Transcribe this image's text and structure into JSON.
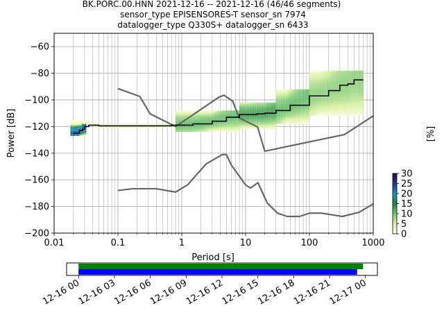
{
  "title_lines": [
    "BK.PORC.00.HNN   2021-12-16 -- 2021-12-16  (46/46 segments)",
    "sensor_type EPISENSORES-T sensor_sn 7974",
    "datalogger_type Q330S+ datalogger_sn 6433"
  ],
  "chart_data": [
    {
      "type": "heatmap",
      "xlabel": "Period [s]",
      "ylabel": "Power [dB]",
      "xscale": "log",
      "xlim": [
        0.01,
        1000
      ],
      "ylim": [
        -200,
        -50
      ],
      "grid": true,
      "x_ticks": [
        {
          "v": 0.01,
          "label": "0.01"
        },
        {
          "v": 0.1,
          "label": "0.1"
        },
        {
          "v": 1,
          "label": "1"
        },
        {
          "v": 10,
          "label": "10"
        },
        {
          "v": 100,
          "label": "100"
        },
        {
          "v": 1000,
          "label": "1000"
        }
      ],
      "y_ticks": [
        {
          "v": -60,
          "label": "−60"
        },
        {
          "v": -80,
          "label": "−80"
        },
        {
          "v": -100,
          "label": "−100"
        },
        {
          "v": -120,
          "label": "−120"
        },
        {
          "v": -140,
          "label": "−140"
        },
        {
          "v": -160,
          "label": "−160"
        },
        {
          "v": -180,
          "label": "−180"
        },
        {
          "v": -200,
          "label": "−200"
        }
      ],
      "colorbar": {
        "label": "[%]",
        "range": [
          0,
          30
        ],
        "ticks": [
          {
            "v": 0,
            "label": "0"
          },
          {
            "v": 5,
            "label": "5"
          },
          {
            "v": 10,
            "label": "10"
          },
          {
            "v": 15,
            "label": "15"
          },
          {
            "v": 20,
            "label": "20"
          },
          {
            "v": 25,
            "label": "25"
          },
          {
            "v": 30,
            "label": "30"
          }
        ],
        "colors": [
          "#ffffe5",
          "#d9f0a3",
          "#78c679",
          "#238443",
          "#1d91c0",
          "#253494",
          "#2d0a3e"
        ]
      },
      "median_line": {
        "color": "#000000",
        "points": [
          [
            0.02,
            -125
          ],
          [
            0.025,
            -123
          ],
          [
            0.028,
            -122
          ],
          [
            0.03,
            -120
          ],
          [
            0.035,
            -119
          ],
          [
            0.05,
            -119.5
          ],
          [
            0.1,
            -119.5
          ],
          [
            0.3,
            -119.5
          ],
          [
            0.7,
            -119
          ],
          [
            1.5,
            -118
          ],
          [
            3,
            -116
          ],
          [
            5,
            -113
          ],
          [
            8,
            -111
          ],
          [
            10,
            -111
          ],
          [
            15,
            -110.5
          ],
          [
            20,
            -110
          ],
          [
            30,
            -108
          ],
          [
            50,
            -104
          ],
          [
            100,
            -97
          ],
          [
            200,
            -93
          ],
          [
            300,
            -89
          ],
          [
            400,
            -88
          ],
          [
            500,
            -85
          ],
          [
            700,
            -85
          ]
        ]
      },
      "noise_models": [
        {
          "color": "#666666",
          "points": [
            [
              0.1,
              -91.5
            ],
            [
              0.22,
              -97.4
            ],
            [
              0.32,
              -110.5
            ],
            [
              0.8,
              -120
            ],
            [
              3.8,
              -98
            ],
            [
              4.6,
              -96.5
            ],
            [
              6.3,
              -101
            ],
            [
              7.9,
              -113.5
            ],
            [
              15.4,
              -120.3
            ],
            [
              20,
              -138.5
            ],
            [
              354.8,
              -126
            ],
            [
              1000,
              -112
            ]
          ]
        },
        {
          "color": "#666666",
          "points": [
            [
              0.1,
              -168
            ],
            [
              0.17,
              -166.7
            ],
            [
              0.4,
              -166.7
            ],
            [
              0.8,
              -169.2
            ],
            [
              1.24,
              -163.7
            ],
            [
              2.4,
              -148.1
            ],
            [
              4.3,
              -141.1
            ],
            [
              5,
              -141.1
            ],
            [
              6,
              -149
            ],
            [
              10,
              -163.8
            ],
            [
              12,
              -166.2
            ],
            [
              15.6,
              -162.1
            ],
            [
              21.9,
              -177.5
            ],
            [
              31.6,
              -185
            ],
            [
              45,
              -187.5
            ],
            [
              70,
              -187.5
            ],
            [
              101,
              -185
            ],
            [
              154,
              -185
            ],
            [
              328,
              -187.5
            ],
            [
              600,
              -184.4
            ],
            [
              1000,
              -178
            ]
          ]
        }
      ],
      "density_bands": [
        {
          "x": [
            0.018,
            0.032
          ],
          "y": [
            -127,
            -118
          ],
          "level": 22
        },
        {
          "x": [
            0.018,
            0.04
          ],
          "y": [
            -118,
            -115
          ],
          "level": 2
        },
        {
          "x": [
            0.04,
            0.8
          ],
          "y": [
            -121,
            -118
          ],
          "level": 3
        },
        {
          "x": [
            0.8,
            8
          ],
          "y": [
            -124,
            -108
          ],
          "level": 10
        },
        {
          "x": [
            8,
            30
          ],
          "y": [
            -122,
            -102
          ],
          "level": 12
        },
        {
          "x": [
            30,
            100
          ],
          "y": [
            -118,
            -92
          ],
          "level": 10
        },
        {
          "x": [
            100,
            700
          ],
          "y": [
            -112,
            -78
          ],
          "level": 8
        }
      ]
    },
    {
      "type": "bar",
      "subtype": "timeline",
      "tick_labels": [
        "12-16 00",
        "12-16 03",
        "12-16 06",
        "12-16 09",
        "12-16 12",
        "12-16 15",
        "12-16 18",
        "12-16 21",
        "12-17 00"
      ],
      "x_hours_range": [
        -1,
        25
      ],
      "series": [
        {
          "start_hour": 0,
          "end_hour": 23.8,
          "color": "#008000"
        },
        {
          "start_hour": 0,
          "end_hour": 23.3,
          "color": "#0000ff"
        }
      ]
    }
  ]
}
